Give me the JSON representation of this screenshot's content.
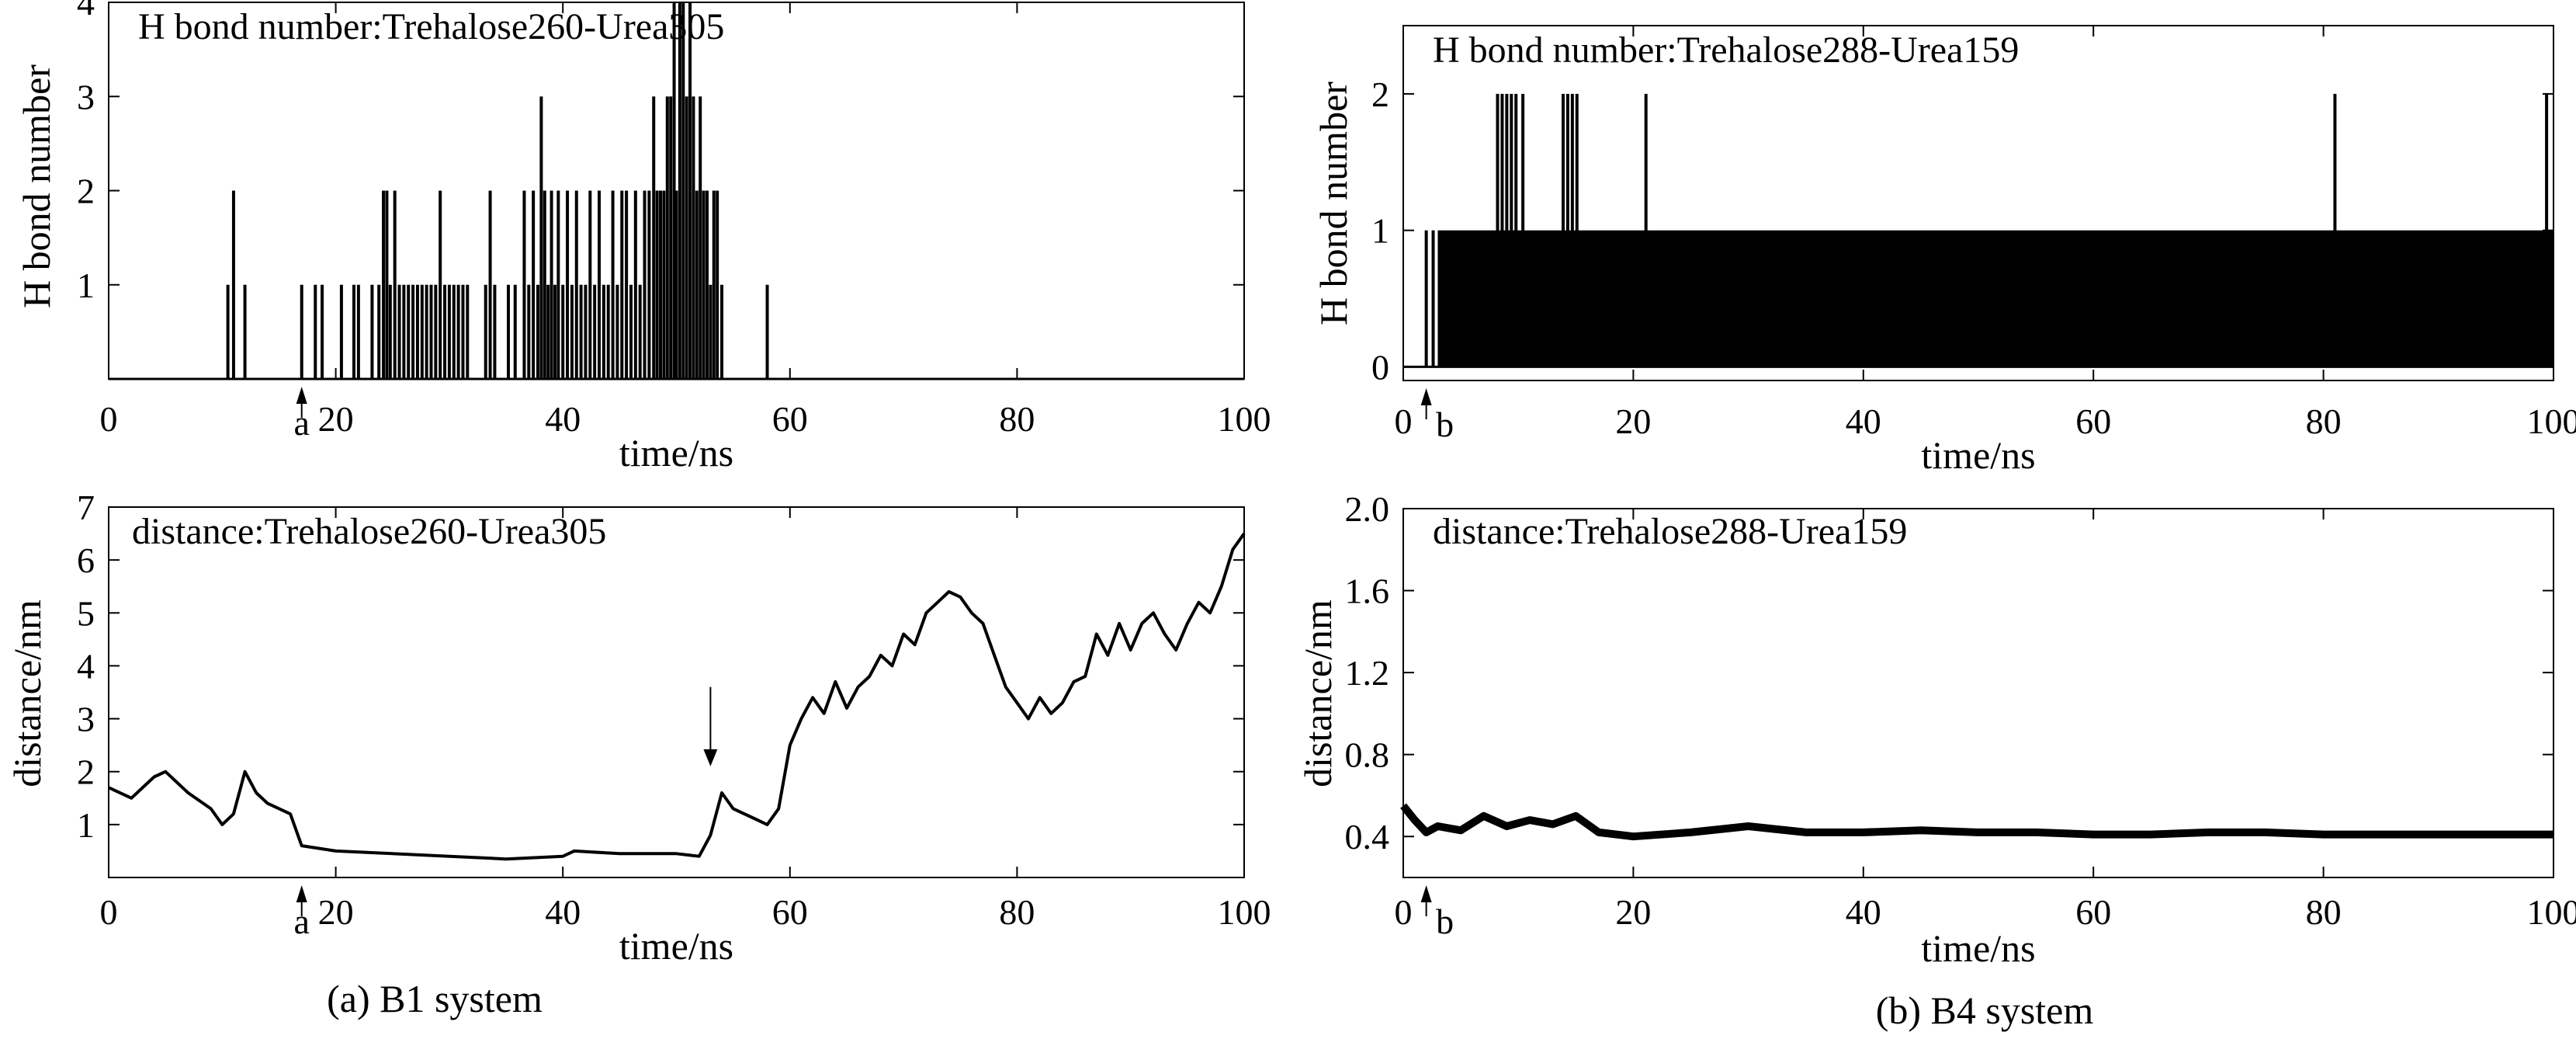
{
  "chart_data": [
    {
      "panel": "a-top",
      "type": "bar",
      "title": "H  bond number:Trehalose260-Urea305",
      "xlabel": "time/ns",
      "ylabel": "H bond number",
      "xlim": [
        0,
        100
      ],
      "ylim": [
        0,
        4
      ],
      "xticks": [
        0,
        20,
        40,
        60,
        80,
        100
      ],
      "yticks": [
        1,
        2,
        3,
        4
      ],
      "marker": {
        "label": "a",
        "x": 17
      },
      "description_of_data": "sparse spikes of integer H-bond counts between ~10 ns and ~58 ns; densest 24-32 ns and 37-54 ns; peak of 4 near 50 ns",
      "x": [
        10.5,
        11.0,
        12.0,
        17.0,
        18.2,
        18.8,
        20.5,
        21.6,
        22.0,
        23.2,
        23.8,
        24.2,
        24.5,
        24.8,
        25.2,
        25.6,
        26.0,
        26.4,
        26.8,
        27.2,
        27.6,
        28.0,
        28.4,
        28.8,
        29.2,
        29.6,
        30.0,
        30.4,
        30.8,
        31.2,
        31.6,
        33.2,
        33.6,
        34.0,
        35.2,
        35.8,
        36.6,
        37.0,
        37.4,
        37.8,
        38.1,
        38.4,
        38.7,
        39.0,
        39.3,
        39.6,
        40.0,
        40.4,
        40.8,
        41.2,
        41.6,
        42.0,
        42.4,
        42.8,
        43.2,
        43.6,
        44.0,
        44.4,
        44.8,
        45.2,
        45.6,
        46.0,
        46.4,
        46.8,
        47.2,
        47.6,
        48.0,
        48.3,
        48.6,
        48.9,
        49.2,
        49.5,
        49.8,
        50.0,
        50.3,
        50.6,
        50.9,
        51.2,
        51.5,
        51.8,
        52.1,
        52.4,
        52.7,
        53.0,
        53.3,
        53.6,
        54.0,
        58.0
      ],
      "values": [
        1,
        2,
        1,
        1,
        1,
        1,
        1,
        1,
        1,
        1,
        1,
        2,
        2,
        1,
        2,
        1,
        1,
        1,
        1,
        1,
        1,
        1,
        1,
        1,
        2,
        1,
        1,
        1,
        1,
        1,
        1,
        1,
        2,
        1,
        1,
        1,
        2,
        1,
        2,
        1,
        3,
        2,
        1,
        2,
        1,
        2,
        1,
        2,
        1,
        2,
        1,
        1,
        2,
        1,
        2,
        1,
        1,
        2,
        1,
        2,
        2,
        1,
        2,
        1,
        2,
        2,
        3,
        2,
        2,
        2,
        3,
        3,
        4,
        2,
        4,
        4,
        3,
        4,
        3,
        2,
        3,
        2,
        2,
        1,
        2,
        2,
        1,
        1
      ]
    },
    {
      "panel": "a-bottom",
      "type": "line",
      "title": "distance:Trehalose260-Urea305",
      "xlabel": "time/ns",
      "ylabel": "distance/nm",
      "xlim": [
        0,
        100
      ],
      "ylim": [
        0,
        7
      ],
      "xticks": [
        0,
        20,
        40,
        60,
        80,
        100
      ],
      "yticks": [
        1,
        2,
        3,
        4,
        5,
        6,
        7
      ],
      "marker": {
        "label": "a",
        "x": 17
      },
      "arrow": {
        "x": 53,
        "y_from": 3.6,
        "y_to": 2.1
      },
      "x": [
        0,
        2,
        4,
        5,
        7,
        9,
        10,
        11,
        12,
        13,
        14,
        16,
        17,
        20,
        25,
        30,
        35,
        40,
        41,
        45,
        50,
        52,
        53,
        54,
        55,
        57,
        58,
        59,
        60,
        61,
        62,
        63,
        64,
        65,
        66,
        67,
        68,
        69,
        70,
        71,
        72,
        73,
        74,
        75,
        76,
        77,
        78,
        79,
        80,
        81,
        82,
        83,
        84,
        85,
        86,
        87,
        88,
        89,
        90,
        91,
        92,
        93,
        94,
        95,
        96,
        97,
        98,
        99,
        100
      ],
      "values": [
        1.7,
        1.5,
        1.9,
        2.0,
        1.6,
        1.3,
        1.0,
        1.2,
        2.0,
        1.6,
        1.4,
        1.2,
        0.6,
        0.5,
        0.45,
        0.4,
        0.35,
        0.4,
        0.5,
        0.45,
        0.45,
        0.4,
        0.8,
        1.6,
        1.3,
        1.1,
        1.0,
        1.3,
        2.5,
        3.0,
        3.4,
        3.1,
        3.7,
        3.2,
        3.6,
        3.8,
        4.2,
        4.0,
        4.6,
        4.4,
        5.0,
        5.2,
        5.4,
        5.3,
        5.0,
        4.8,
        4.2,
        3.6,
        3.3,
        3.0,
        3.4,
        3.1,
        3.3,
        3.7,
        3.8,
        4.6,
        4.2,
        4.8,
        4.3,
        4.8,
        5.0,
        4.6,
        4.3,
        4.8,
        5.2,
        5.0,
        5.5,
        6.2,
        6.5
      ]
    },
    {
      "panel": "b-top",
      "type": "bar",
      "title": "H bond number:Trehalose288-Urea159",
      "xlabel": "time/ns",
      "ylabel": "H bond number",
      "xlim": [
        0,
        100
      ],
      "ylim": [
        -0.1,
        2.5
      ],
      "xticks": [
        0,
        20,
        40,
        60,
        80,
        100
      ],
      "yticks": [
        0,
        1,
        2
      ],
      "marker": {
        "label": "b",
        "x": 2
      },
      "description_of_data": "continuous H-bond count of 1 from ~3 ns to 100 ns with occasional spikes to 2",
      "baseline_value": 1,
      "baseline_range": [
        3,
        100
      ],
      "x": [
        2.0,
        2.6,
        8.2,
        8.6,
        9.0,
        9.4,
        9.8,
        10.4,
        13.9,
        14.3,
        14.7,
        15.1,
        21.1,
        81.0,
        99.4
      ],
      "values": [
        1,
        1,
        2,
        2,
        2,
        2,
        2,
        2,
        2,
        2,
        2,
        2,
        2,
        2,
        2
      ]
    },
    {
      "panel": "b-bottom",
      "type": "line",
      "title": "distance:Trehalose288-Urea159",
      "xlabel": "time/ns",
      "ylabel": "distance/nm",
      "xlim": [
        0,
        100
      ],
      "ylim": [
        0.2,
        2.0
      ],
      "xticks": [
        0,
        20,
        40,
        60,
        80,
        100
      ],
      "yticks": [
        0.4,
        0.8,
        1.2,
        1.6,
        2.0
      ],
      "marker": {
        "label": "b",
        "x": 2
      },
      "description_of_data": "noisy trace fluctuating around 0.4-0.45 nm for the entire 100 ns",
      "x": [
        0,
        1,
        2,
        3,
        5,
        7,
        9,
        11,
        13,
        15,
        17,
        20,
        25,
        30,
        35,
        40,
        45,
        50,
        55,
        60,
        65,
        70,
        75,
        80,
        85,
        90,
        95,
        100
      ],
      "values": [
        0.55,
        0.48,
        0.42,
        0.45,
        0.43,
        0.5,
        0.45,
        0.48,
        0.46,
        0.5,
        0.42,
        0.4,
        0.42,
        0.45,
        0.42,
        0.42,
        0.43,
        0.42,
        0.42,
        0.41,
        0.41,
        0.42,
        0.42,
        0.41,
        0.41,
        0.41,
        0.41,
        0.41
      ]
    }
  ],
  "captions": {
    "left": "(a) B1 system",
    "right": "(b) B4 system"
  }
}
